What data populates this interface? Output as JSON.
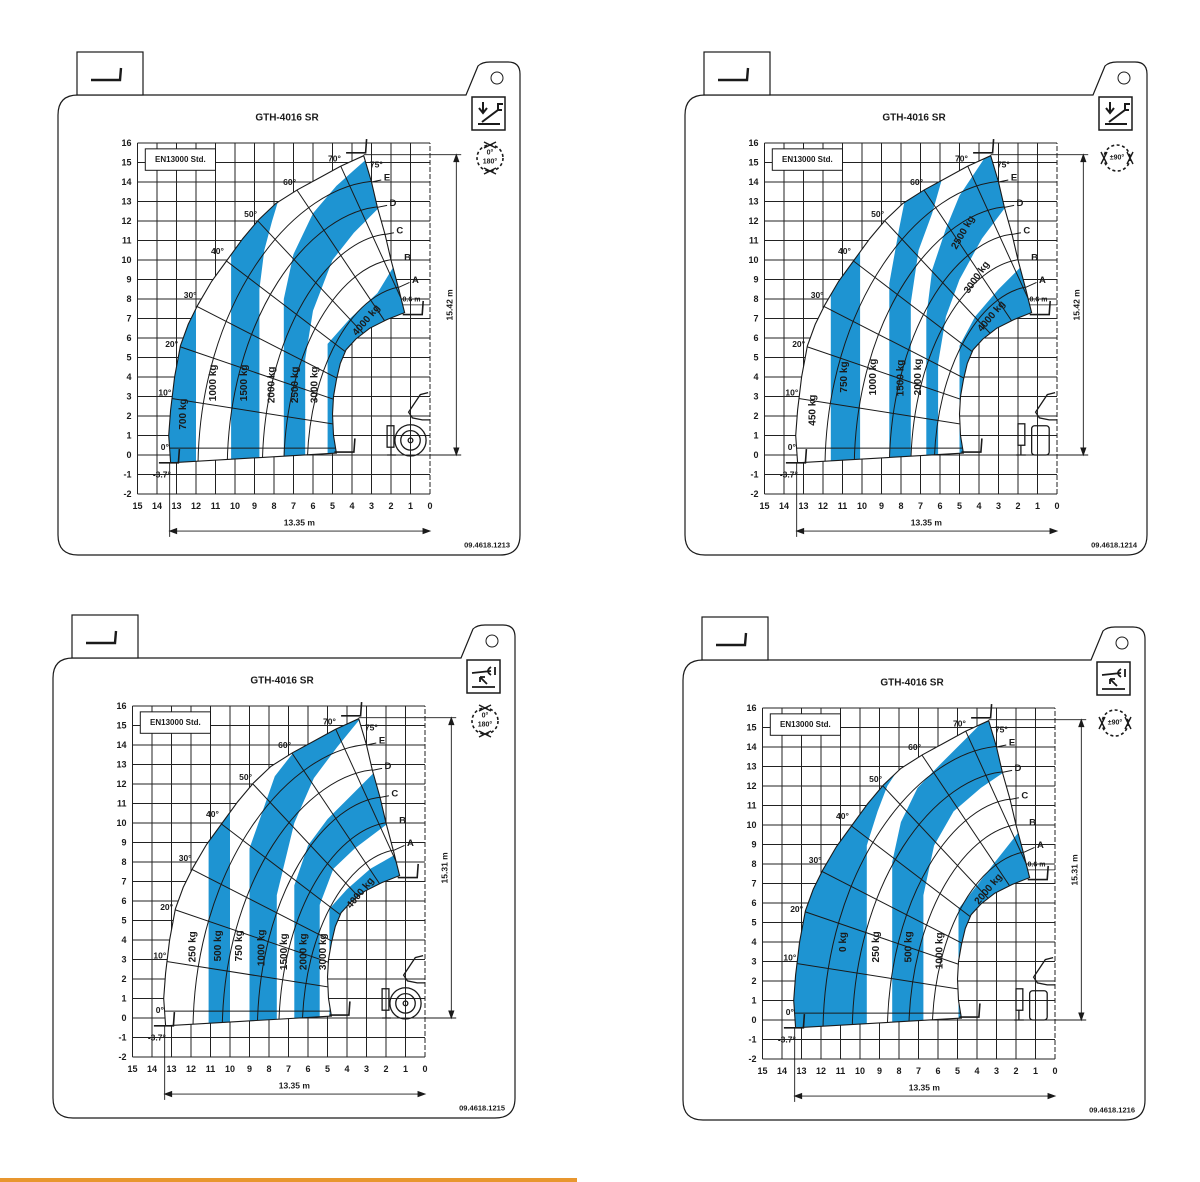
{
  "colors": {
    "load_zone": "#1e94d2",
    "grid": "#222222",
    "footer_rule": "#e8962e"
  },
  "axes": {
    "x_ticks": [
      "15",
      "14",
      "13",
      "12",
      "11",
      "10",
      "9",
      "8",
      "7",
      "6",
      "5",
      "4",
      "3",
      "2",
      "1",
      "0"
    ],
    "y_ticks": [
      "16",
      "15",
      "14",
      "13",
      "12",
      "11",
      "10",
      "9",
      "8",
      "7",
      "6",
      "5",
      "4",
      "3",
      "2",
      "1",
      "0",
      "-1",
      "-2"
    ]
  },
  "angles": [
    "0°",
    "10°",
    "20°",
    "30°",
    "40°",
    "50°",
    "60°",
    "70°",
    "75°",
    "-3.7°"
  ],
  "extension_curves": [
    "E",
    "D",
    "C",
    "B",
    "A"
  ],
  "charts": [
    {
      "title": "GTH-4016 SR",
      "standard": "EN13000 Std.",
      "part_number": "09.4618.1213",
      "height_label": "15.42 m",
      "reach_label": "13.35 m",
      "fork_offset": "0.6 m",
      "rotation": [
        "0°",
        "180°"
      ],
      "stabilizer_icon": "stabilizers-down-icon",
      "machine_view": "rear",
      "loads": [
        "700 kg",
        "1000 kg",
        "1500 kg",
        "2000 kg",
        "2500 kg",
        "3000 kg",
        "4000 kg"
      ]
    },
    {
      "title": "GTH-4016 SR",
      "standard": "EN13000 Std.",
      "part_number": "09.4618.1214",
      "height_label": "15.42 m",
      "reach_label": "13.35 m",
      "fork_offset": "0.6 m",
      "rotation": [
        "±90°"
      ],
      "stabilizer_icon": "stabilizers-down-icon",
      "machine_view": "side",
      "loads": [
        "450 kg",
        "750 kg",
        "1000 kg",
        "1500 kg",
        "2000 kg",
        "2500 kg",
        "3000 kg",
        "4000 kg"
      ]
    },
    {
      "title": "GTH-4016 SR",
      "standard": "EN13000 Std.",
      "part_number": "09.4618.1215",
      "height_label": "15.31 m",
      "reach_label": "13.35 m",
      "fork_offset": "",
      "rotation": [
        "0°",
        "180°"
      ],
      "stabilizer_icon": "stabilizers-up-icon",
      "machine_view": "rear",
      "loads": [
        "250 kg",
        "500 kg",
        "750 kg",
        "1000 kg",
        "1500 kg",
        "2000 kg",
        "3000 kg",
        "4000 kg"
      ]
    },
    {
      "title": "GTH-4016 SR",
      "standard": "EN13000 Std.",
      "part_number": "09.4618.1216",
      "height_label": "15.31 m",
      "reach_label": "13.35 m",
      "fork_offset": "0.6 m",
      "rotation": [
        "±90°"
      ],
      "stabilizer_icon": "stabilizers-up-icon",
      "machine_view": "side",
      "loads": [
        "0 kg",
        "250 kg",
        "500 kg",
        "1000 kg",
        "2000 kg"
      ]
    }
  ]
}
